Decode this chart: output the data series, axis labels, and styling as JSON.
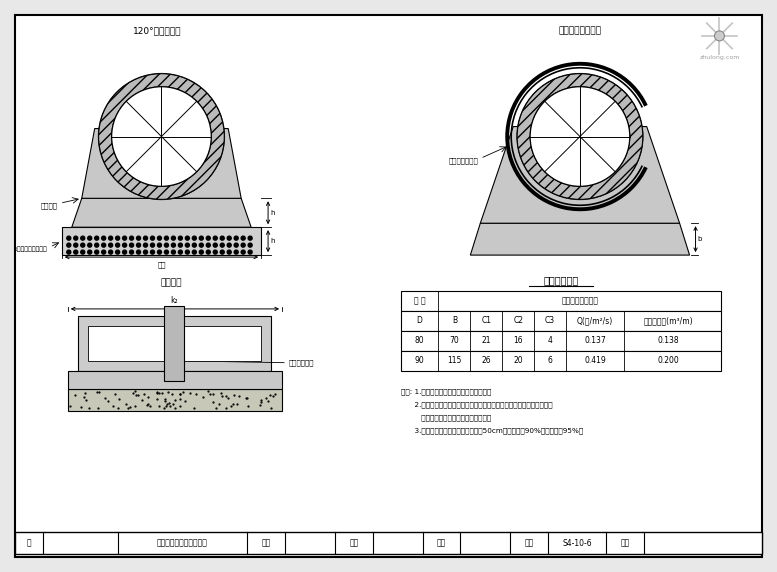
{
  "bg_color": "#e8e8e8",
  "paper_color": "#ffffff",
  "top_left_label": "120°混凝土基础",
  "top_right_label": "水泥砂浆抒带接口",
  "bottom_left_label": "抒管接口",
  "table_title": "尺寸及材料表",
  "note_lines": [
    "说明: 1.图注尺寸除角度外，余均以厘米计。",
    "      2.当流工比老牟带在层居岁架施工剃时，需在架模施工时在边套海截面",
    "         角毛糊件，以使整个管基统为一体。",
    "      3.基础拍破实密密实皮层深：管阃50cm以内不小于90%，余不小于95%。"
  ],
  "table_col_widths": [
    38,
    32,
    32,
    32,
    32,
    58,
    90
  ],
  "table_col0_header": "管 径",
  "table_col0_sub": "D",
  "table_merged_header": "抒带接口管道基础",
  "table_sub_headers": [
    "B",
    "C1",
    "C2",
    "C3",
    "Q(吠/m²/s)",
    "水泥砂浆量(m³/m)"
  ],
  "table_rows": [
    [
      "80",
      "70",
      "21",
      "16",
      "4",
      "0.137",
      "0.138"
    ],
    [
      "90",
      "115",
      "26",
      "20",
      "6",
      "0.419",
      "0.200"
    ]
  ],
  "footer_texts": [
    "院",
    "",
    "排水管基础、接口构造图",
    "设计",
    "",
    "复查",
    "",
    "审核",
    "",
    "图号",
    "S4-10-6",
    "日期",
    ""
  ],
  "footer_widths": [
    28,
    75,
    130,
    38,
    50,
    38,
    50,
    38,
    50,
    38,
    58,
    38,
    50
  ],
  "left_label1": "切挖截面",
  "left_label2": "5年余配砂砖层样石",
  "right_label1": "管道抒带接合部",
  "dim_label_width": "宽度",
  "bottom_section_label": "抒带水泥砂浆"
}
